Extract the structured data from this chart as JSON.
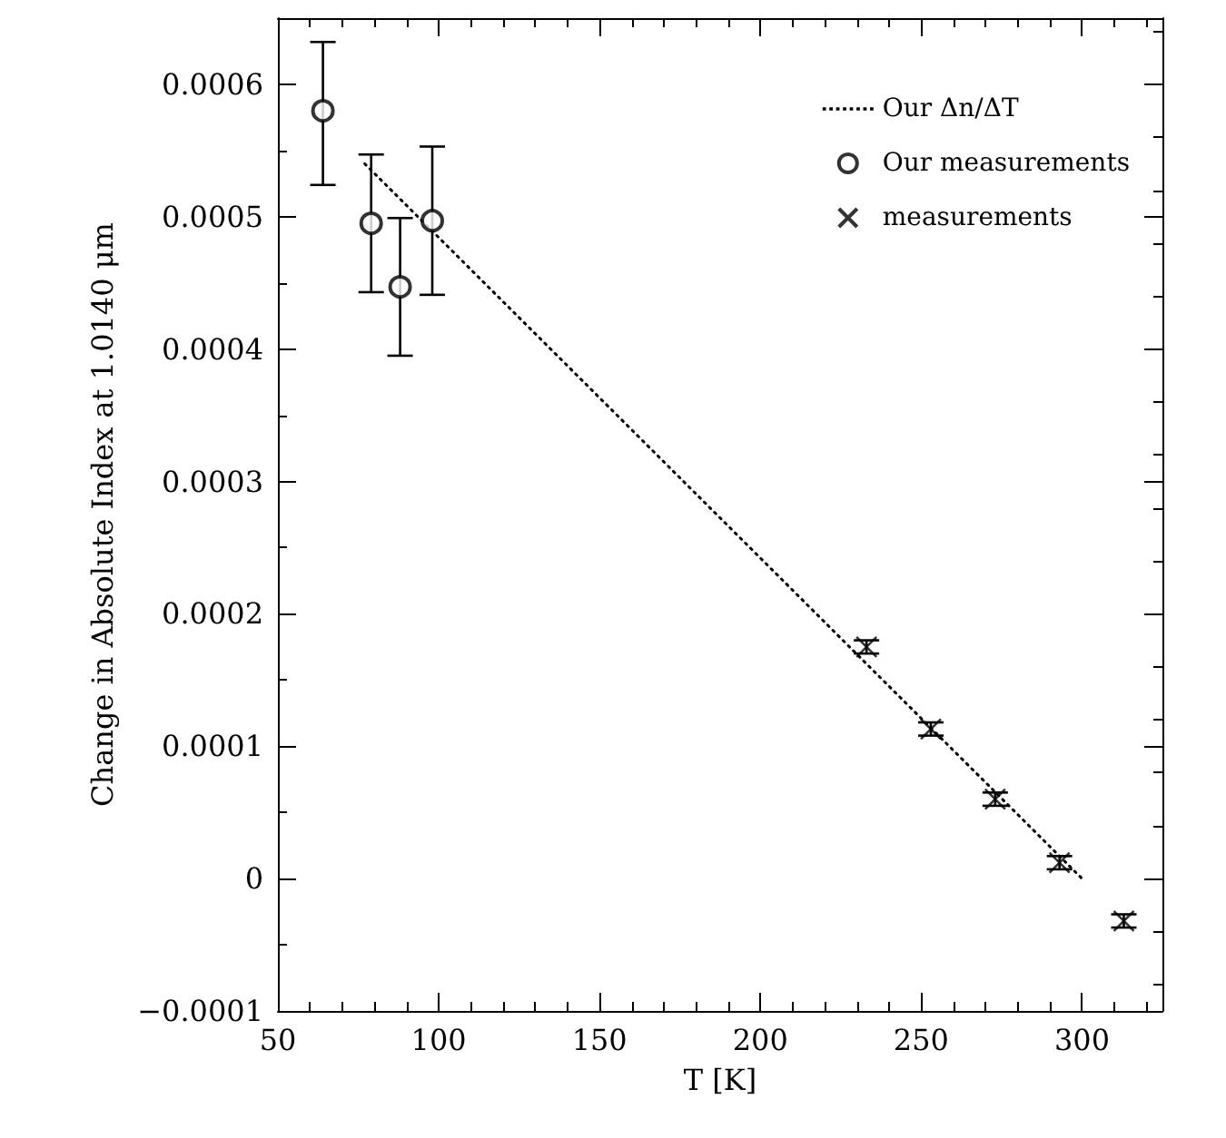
{
  "chart_data": {
    "type": "scatter",
    "xlabel": "T [K]",
    "ylabel": "Change in Absolute Index at 1.0140 μm",
    "xlim": [
      50,
      325
    ],
    "ylim": [
      -0.0001,
      0.00065
    ],
    "xticks": [
      50,
      100,
      150,
      200,
      250,
      300
    ],
    "yticks": [
      -0.0001,
      0,
      0.0001,
      0.0002,
      0.0003,
      0.0004,
      0.0005,
      0.0006
    ],
    "grid": false,
    "legend": "top right",
    "series": [
      {
        "name": "Our Δn/ΔT",
        "type": "line",
        "color": "#000000",
        "line_style": "dotted",
        "marker": "none",
        "x": [
          77,
          300
        ],
        "values": [
          0.00054,
          0.0
        ]
      },
      {
        "name": "Our measurements",
        "color": "#000000",
        "marker": "circle",
        "x": [
          64,
          79,
          88,
          98
        ],
        "values": [
          0.00058,
          0.000495,
          0.000447,
          0.000497
        ],
        "errors": [
          [
            0.000524,
            0.000632
          ],
          [
            0.000443,
            0.000547
          ],
          [
            0.000395,
            0.000499
          ],
          [
            0.000441,
            0.000553
          ]
        ]
      },
      {
        "name": "measurements",
        "color": "#000000",
        "marker": "cross",
        "x": [
          233,
          253,
          273,
          293,
          313
        ],
        "values": [
          0.000175,
          0.000113,
          6e-05,
          1.2e-05,
          -3.2e-05
        ],
        "errors": [
          5e-06,
          5e-06,
          5e-06,
          5e-06,
          5e-06
        ]
      }
    ]
  }
}
